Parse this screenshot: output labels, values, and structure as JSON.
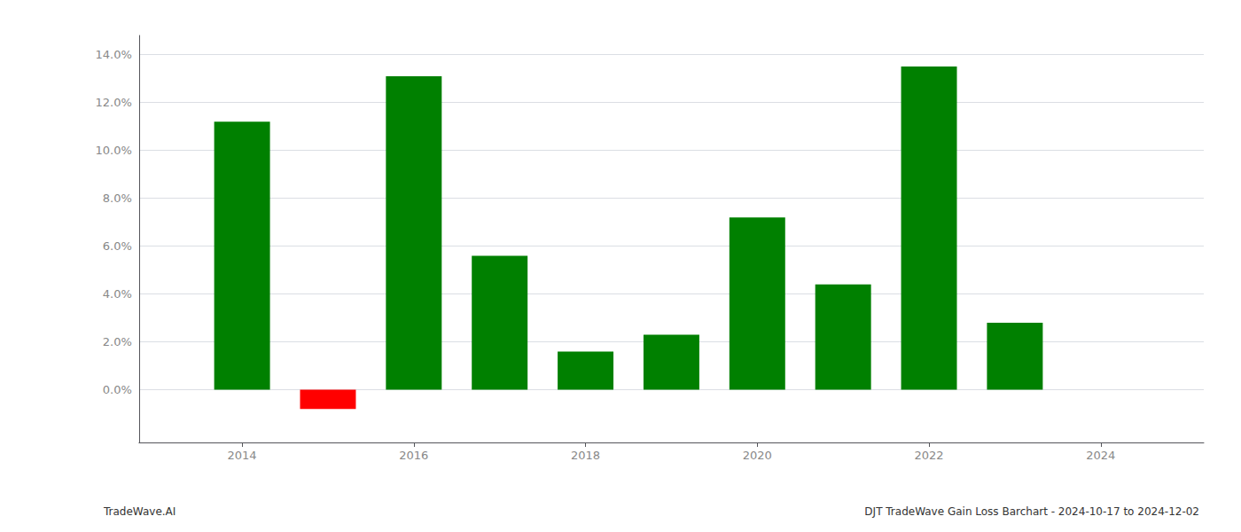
{
  "chart_data": {
    "type": "bar",
    "title": "DJT TradeWave Gain Loss Barchart - 2024-10-17 to 2024-12-02",
    "annotations": [
      "TradeWave.AI"
    ],
    "x": [
      2014,
      2015,
      2016,
      2017,
      2018,
      2019,
      2020,
      2021,
      2022,
      2023
    ],
    "values": [
      0.112,
      -0.008,
      0.131,
      0.056,
      0.016,
      0.023,
      0.072,
      0.044,
      0.135,
      0.028
    ],
    "colors": [
      "#008000",
      "#ff0000",
      "#008000",
      "#008000",
      "#008000",
      "#008000",
      "#008000",
      "#008000",
      "#008000",
      "#008000"
    ],
    "xlim": [
      2012.8,
      2025.2
    ],
    "xticks": [
      2014,
      2016,
      2018,
      2020,
      2022,
      2024
    ],
    "ylim": [
      -0.022,
      0.148
    ],
    "yticks": [
      {
        "value": 0.0,
        "label": "0.0%"
      },
      {
        "value": 0.02,
        "label": "2.0%"
      },
      {
        "value": 0.04,
        "label": "4.0%"
      },
      {
        "value": 0.06,
        "label": "6.0%"
      },
      {
        "value": 0.08,
        "label": "8.0%"
      },
      {
        "value": 0.1,
        "label": "10.0%"
      },
      {
        "value": 0.12,
        "label": "12.0%"
      },
      {
        "value": 0.14,
        "label": "14.0%"
      }
    ],
    "grid": true
  }
}
